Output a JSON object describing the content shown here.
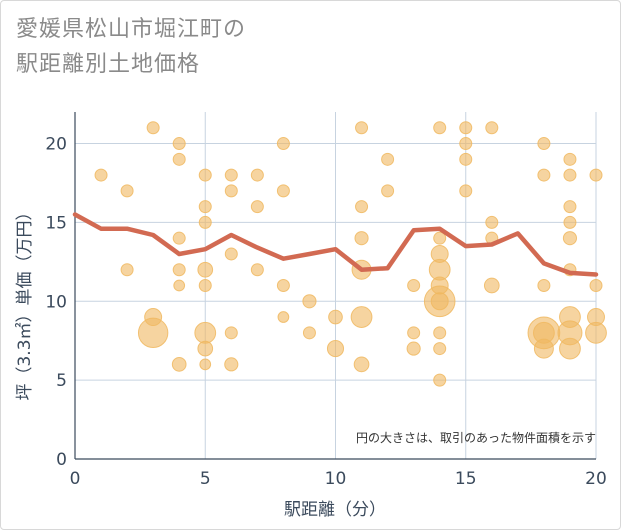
{
  "title": {
    "line1": "愛媛県松山市堀江町の",
    "line2": "駅距離別土地価格"
  },
  "chart_data": {
    "type": "scatter",
    "title": "愛媛県松山市堀江町の駅距離別土地価格",
    "xlabel": "駅距離（分）",
    "ylabel": "坪（3.3㎡）単価（万円）",
    "xlim": [
      0,
      20
    ],
    "ylim": [
      0,
      22
    ],
    "xticks": [
      0,
      5,
      10,
      15,
      20
    ],
    "yticks": [
      0,
      5,
      10,
      15,
      20
    ],
    "grid": true,
    "note": "円の大きさは、取引のあった物件面積を示す",
    "colors": {
      "bubble": "#f0b860",
      "line": "#d26a52",
      "grid": "#c7d3e0",
      "axis": "#3b4a5c"
    },
    "points": [
      {
        "x": 1,
        "y": 18,
        "s": 1
      },
      {
        "x": 2,
        "y": 17,
        "s": 1
      },
      {
        "x": 2,
        "y": 12,
        "s": 1
      },
      {
        "x": 3,
        "y": 21,
        "s": 1
      },
      {
        "x": 3,
        "y": 8,
        "s": 6
      },
      {
        "x": 3,
        "y": 9,
        "s": 2
      },
      {
        "x": 4,
        "y": 20,
        "s": 1
      },
      {
        "x": 4,
        "y": 19,
        "s": 1
      },
      {
        "x": 4,
        "y": 14,
        "s": 1
      },
      {
        "x": 4,
        "y": 12,
        "s": 1
      },
      {
        "x": 4,
        "y": 11,
        "s": 0.8
      },
      {
        "x": 4,
        "y": 6,
        "s": 1.3
      },
      {
        "x": 5,
        "y": 18,
        "s": 1
      },
      {
        "x": 5,
        "y": 16,
        "s": 1
      },
      {
        "x": 5,
        "y": 15,
        "s": 1
      },
      {
        "x": 5,
        "y": 12,
        "s": 1.5
      },
      {
        "x": 5,
        "y": 11,
        "s": 1
      },
      {
        "x": 5,
        "y": 8,
        "s": 3
      },
      {
        "x": 5,
        "y": 7,
        "s": 1.5
      },
      {
        "x": 5,
        "y": 6,
        "s": 0.8
      },
      {
        "x": 6,
        "y": 18,
        "s": 1
      },
      {
        "x": 6,
        "y": 17,
        "s": 1
      },
      {
        "x": 6,
        "y": 13,
        "s": 1
      },
      {
        "x": 6,
        "y": 8,
        "s": 1
      },
      {
        "x": 6,
        "y": 6,
        "s": 1.2
      },
      {
        "x": 7,
        "y": 18,
        "s": 1
      },
      {
        "x": 7,
        "y": 16,
        "s": 1
      },
      {
        "x": 7,
        "y": 12,
        "s": 1
      },
      {
        "x": 8,
        "y": 20,
        "s": 1
      },
      {
        "x": 8,
        "y": 17,
        "s": 1
      },
      {
        "x": 8,
        "y": 11,
        "s": 1
      },
      {
        "x": 8,
        "y": 9,
        "s": 0.8
      },
      {
        "x": 9,
        "y": 10,
        "s": 1.2
      },
      {
        "x": 9,
        "y": 8,
        "s": 1
      },
      {
        "x": 10,
        "y": 9,
        "s": 1.3
      },
      {
        "x": 10,
        "y": 7,
        "s": 1.8
      },
      {
        "x": 11,
        "y": 21,
        "s": 1
      },
      {
        "x": 11,
        "y": 16,
        "s": 1
      },
      {
        "x": 11,
        "y": 14,
        "s": 1.2
      },
      {
        "x": 11,
        "y": 12,
        "s": 2.5
      },
      {
        "x": 11,
        "y": 9,
        "s": 3
      },
      {
        "x": 11,
        "y": 6,
        "s": 1.5
      },
      {
        "x": 12,
        "y": 19,
        "s": 1
      },
      {
        "x": 12,
        "y": 17,
        "s": 1
      },
      {
        "x": 13,
        "y": 11,
        "s": 1
      },
      {
        "x": 13,
        "y": 8,
        "s": 1
      },
      {
        "x": 13,
        "y": 7,
        "s": 1.2
      },
      {
        "x": 14,
        "y": 21,
        "s": 1
      },
      {
        "x": 14,
        "y": 14,
        "s": 1
      },
      {
        "x": 14,
        "y": 13,
        "s": 2
      },
      {
        "x": 14,
        "y": 12,
        "s": 3
      },
      {
        "x": 14,
        "y": 11,
        "s": 2
      },
      {
        "x": 14,
        "y": 10,
        "s": 6.5
      },
      {
        "x": 14,
        "y": 10,
        "s": 2
      },
      {
        "x": 14,
        "y": 8,
        "s": 1
      },
      {
        "x": 14,
        "y": 7,
        "s": 1
      },
      {
        "x": 14,
        "y": 5,
        "s": 1
      },
      {
        "x": 15,
        "y": 21,
        "s": 1
      },
      {
        "x": 15,
        "y": 20,
        "s": 1
      },
      {
        "x": 15,
        "y": 19,
        "s": 1
      },
      {
        "x": 15,
        "y": 17,
        "s": 1
      },
      {
        "x": 16,
        "y": 21,
        "s": 1
      },
      {
        "x": 16,
        "y": 15,
        "s": 1
      },
      {
        "x": 16,
        "y": 14,
        "s": 1
      },
      {
        "x": 16,
        "y": 11,
        "s": 1.5
      },
      {
        "x": 18,
        "y": 20,
        "s": 1
      },
      {
        "x": 18,
        "y": 18,
        "s": 1
      },
      {
        "x": 18,
        "y": 11,
        "s": 1
      },
      {
        "x": 18,
        "y": 8,
        "s": 7
      },
      {
        "x": 18,
        "y": 8,
        "s": 3
      },
      {
        "x": 18,
        "y": 7,
        "s": 2.5
      },
      {
        "x": 19,
        "y": 19,
        "s": 1
      },
      {
        "x": 19,
        "y": 18,
        "s": 1
      },
      {
        "x": 19,
        "y": 16,
        "s": 1
      },
      {
        "x": 19,
        "y": 15,
        "s": 1
      },
      {
        "x": 19,
        "y": 14,
        "s": 1.2
      },
      {
        "x": 19,
        "y": 12,
        "s": 1
      },
      {
        "x": 19,
        "y": 9,
        "s": 3
      },
      {
        "x": 19,
        "y": 8,
        "s": 4
      },
      {
        "x": 19,
        "y": 7,
        "s": 3
      },
      {
        "x": 20,
        "y": 18,
        "s": 1
      },
      {
        "x": 20,
        "y": 11,
        "s": 1
      },
      {
        "x": 20,
        "y": 9,
        "s": 2
      },
      {
        "x": 20,
        "y": 8,
        "s": 3
      }
    ],
    "line": {
      "x": [
        0,
        1,
        2,
        3,
        4,
        5,
        6,
        7,
        8,
        9,
        10,
        11,
        12,
        13,
        14,
        15,
        16,
        17,
        18,
        19,
        20
      ],
      "y": [
        15.5,
        14.6,
        14.6,
        14.2,
        13.0,
        13.3,
        14.2,
        13.4,
        12.7,
        13.0,
        13.3,
        12.0,
        12.1,
        14.5,
        14.6,
        13.5,
        13.6,
        14.3,
        12.4,
        11.8,
        11.7
      ]
    }
  }
}
